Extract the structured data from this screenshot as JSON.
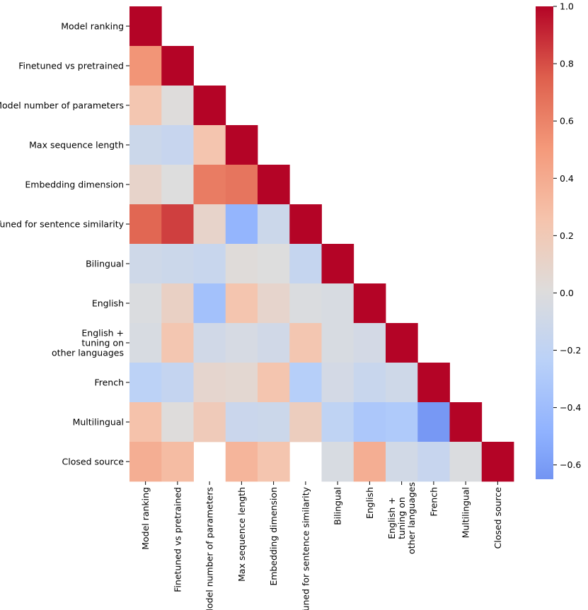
{
  "chart_data": {
    "type": "heatmap",
    "title": "",
    "xlabel": "",
    "ylabel": "",
    "mask": "upper-triangle",
    "labels": [
      "Model ranking",
      "Finetuned vs pretrained",
      "Model number of parameters",
      "Max sequence length",
      "Embedding dimension",
      "Tuned for sentence similarity",
      "Bilingual",
      "English",
      "English +\ntuning on\nother languages",
      "French",
      "Multilingual",
      "Closed source"
    ],
    "matrix": [
      [
        1.0
      ],
      [
        0.52,
        1.0
      ],
      [
        0.23,
        0.01,
        1.0
      ],
      [
        -0.12,
        -0.15,
        0.24,
        1.0
      ],
      [
        0.1,
        0.0,
        0.63,
        0.66,
        1.0
      ],
      [
        0.72,
        0.84,
        0.1,
        -0.46,
        -0.12,
        1.0
      ],
      [
        -0.1,
        -0.12,
        -0.14,
        0.02,
        0.0,
        -0.16,
        1.0
      ],
      [
        -0.02,
        0.13,
        -0.37,
        0.24,
        0.09,
        -0.02,
        -0.04,
        1.0
      ],
      [
        -0.04,
        0.23,
        -0.09,
        -0.05,
        -0.09,
        0.23,
        -0.04,
        -0.07,
        1.0
      ],
      [
        -0.22,
        -0.17,
        0.08,
        0.06,
        0.24,
        -0.26,
        -0.07,
        -0.14,
        -0.1,
        1.0
      ],
      [
        0.26,
        0.01,
        0.19,
        -0.13,
        -0.12,
        0.16,
        -0.2,
        -0.32,
        -0.3,
        -0.63,
        1.0
      ],
      [
        0.38,
        0.3,
        null,
        0.34,
        0.24,
        null,
        -0.04,
        0.38,
        -0.08,
        -0.15,
        -0.02,
        1.0
      ]
    ],
    "colormap": "coolwarm",
    "colorbar": {
      "range": [
        -0.65,
        1.0
      ],
      "ticks": [
        1.0,
        0.8,
        0.6,
        0.4,
        0.2,
        0.0,
        -0.2,
        -0.4,
        -0.6
      ],
      "tick_labels": [
        "1.0",
        "0.8",
        "0.6",
        "0.4",
        "0.2",
        "0.0",
        "−0.2",
        "−0.4",
        "−0.6"
      ]
    }
  }
}
